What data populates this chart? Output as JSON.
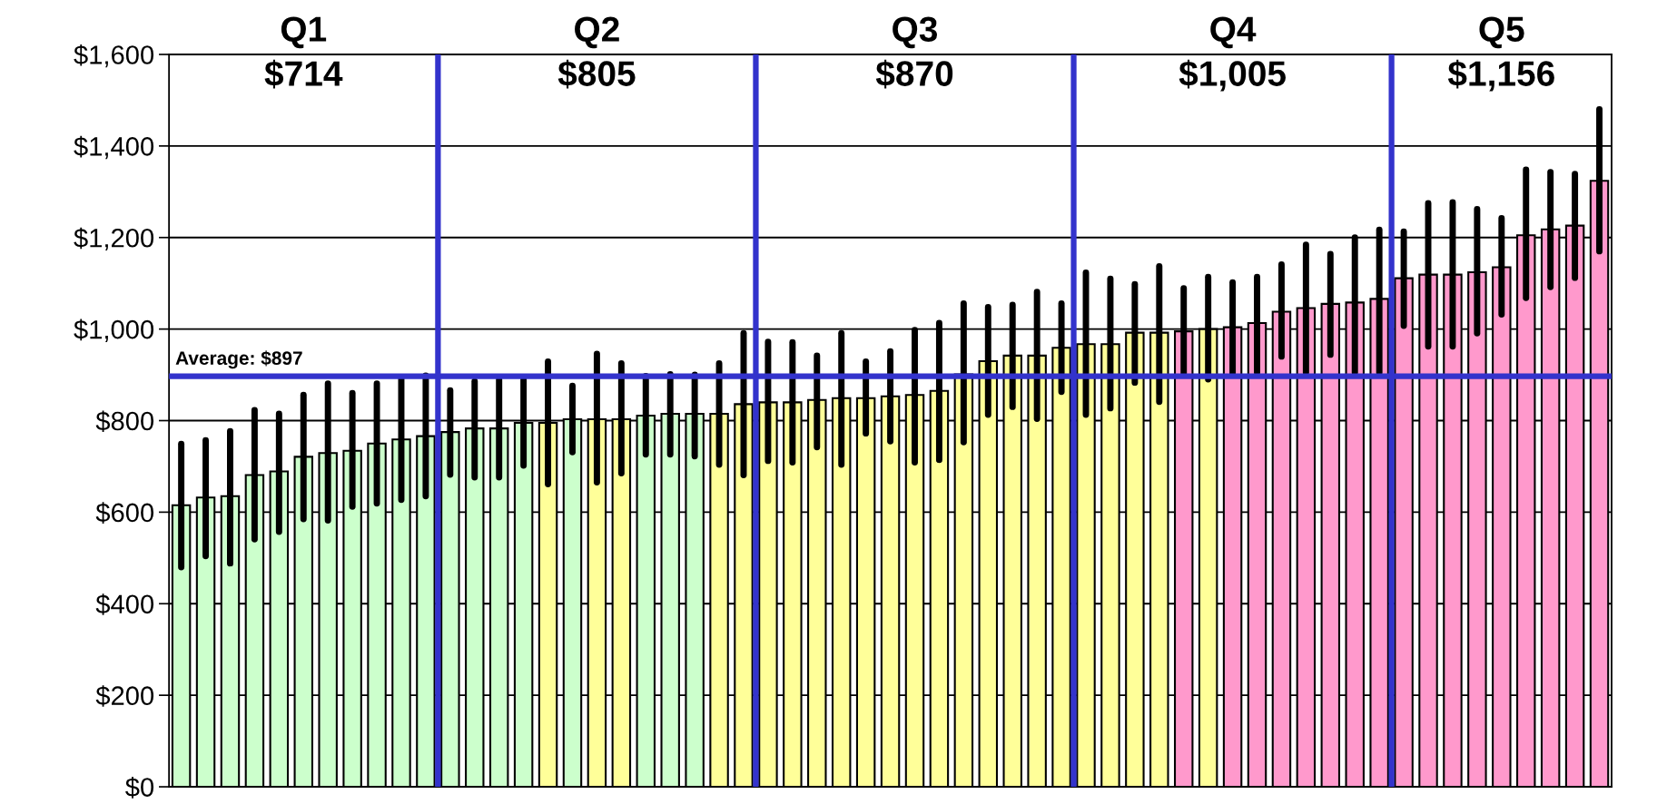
{
  "chart_data": {
    "type": "bar",
    "categories": [
      null,
      null,
      null,
      null,
      null,
      null,
      null,
      null,
      null,
      null,
      null,
      null,
      null,
      null,
      null,
      null,
      null,
      null,
      null,
      null,
      null,
      null,
      null,
      null,
      null,
      null,
      null,
      null,
      null,
      null,
      null,
      null,
      null,
      null,
      null,
      null,
      null,
      null,
      null,
      null,
      null,
      null,
      null,
      null,
      null,
      null,
      null,
      null,
      null,
      null,
      null,
      null,
      null,
      null,
      null,
      null,
      null,
      null,
      null
    ],
    "values": [
      615,
      632,
      635,
      681,
      689,
      721,
      729,
      734,
      750,
      759,
      766,
      775,
      783,
      783,
      795,
      795,
      803,
      803,
      803,
      811,
      815,
      815,
      815,
      836,
      840,
      840,
      845,
      849,
      849,
      853,
      856,
      865,
      901,
      930,
      942,
      942,
      959,
      967,
      967,
      992,
      992,
      995,
      1000,
      1004,
      1013,
      1038,
      1046,
      1055,
      1058,
      1066,
      1111,
      1119,
      1119,
      1124,
      1135,
      1205,
      1218,
      1226,
      1324
    ],
    "errors": [
      [
        480,
        749
      ],
      [
        504,
        757
      ],
      [
        488,
        777
      ],
      [
        541,
        823
      ],
      [
        557,
        815
      ],
      [
        585,
        856
      ],
      [
        582,
        881
      ],
      [
        612,
        860
      ],
      [
        619,
        881
      ],
      [
        627,
        894
      ],
      [
        635,
        898
      ],
      [
        682,
        866
      ],
      [
        676,
        886
      ],
      [
        676,
        890
      ],
      [
        702,
        890
      ],
      [
        661,
        929
      ],
      [
        731,
        876
      ],
      [
        665,
        946
      ],
      [
        685,
        925
      ],
      [
        726,
        897
      ],
      [
        726,
        901
      ],
      [
        722,
        900
      ],
      [
        704,
        925
      ],
      [
        681,
        991
      ],
      [
        712,
        972
      ],
      [
        709,
        971
      ],
      [
        742,
        942
      ],
      [
        704,
        991
      ],
      [
        772,
        929
      ],
      [
        755,
        951
      ],
      [
        709,
        998
      ],
      [
        714,
        1013
      ],
      [
        753,
        1056
      ],
      [
        813,
        1048
      ],
      [
        830,
        1053
      ],
      [
        804,
        1081
      ],
      [
        863,
        1056
      ],
      [
        813,
        1123
      ],
      [
        827,
        1110
      ],
      [
        883,
        1098
      ],
      [
        841,
        1137
      ],
      [
        903,
        1089
      ],
      [
        890,
        1114
      ],
      [
        903,
        1102
      ],
      [
        905,
        1114
      ],
      [
        940,
        1141
      ],
      [
        905,
        1184
      ],
      [
        944,
        1164
      ],
      [
        905,
        1200
      ],
      [
        905,
        1217
      ],
      [
        1007,
        1213
      ],
      [
        962,
        1275
      ],
      [
        962,
        1277
      ],
      [
        991,
        1262
      ],
      [
        1032,
        1242
      ],
      [
        1068,
        1348
      ],
      [
        1092,
        1343
      ],
      [
        1112,
        1339
      ],
      [
        1170,
        1480
      ]
    ],
    "colors": [
      "#ccffcc",
      "#ccffcc",
      "#ccffcc",
      "#ccffcc",
      "#ccffcc",
      "#ccffcc",
      "#ccffcc",
      "#ccffcc",
      "#ccffcc",
      "#ccffcc",
      "#ccffcc",
      "#ccffcc",
      "#ccffcc",
      "#ccffcc",
      "#ccffcc",
      "#ffff99",
      "#ccffcc",
      "#ffff99",
      "#ffff99",
      "#ccffcc",
      "#ccffcc",
      "#ccffcc",
      "#ffff99",
      "#ffff99",
      "#ffff99",
      "#ffff99",
      "#ffff99",
      "#ffff99",
      "#ffff99",
      "#ffff99",
      "#ffff99",
      "#ffff99",
      "#ffff99",
      "#ffff99",
      "#ffff99",
      "#ffff99",
      "#ffff99",
      "#ffff99",
      "#ffff99",
      "#ffff99",
      "#ffff99",
      "#ff99cc",
      "#ffff99",
      "#ff99cc",
      "#ff99cc",
      "#ff99cc",
      "#ff99cc",
      "#ff99cc",
      "#ff99cc",
      "#ff99cc",
      "#ff99cc",
      "#ff99cc",
      "#ff99cc",
      "#ff99cc",
      "#ff99cc",
      "#ff99cc",
      "#ff99cc",
      "#ff99cc",
      "#ff99cc"
    ],
    "ylim": [
      0,
      1600
    ],
    "yticks": [
      {
        "value": 0,
        "label": "$0"
      },
      {
        "value": 200,
        "label": "$200"
      },
      {
        "value": 400,
        "label": "$400"
      },
      {
        "value": 600,
        "label": "$600"
      },
      {
        "value": 800,
        "label": "$800"
      },
      {
        "value": 1000,
        "label": "$1,000"
      },
      {
        "value": 1200,
        "label": "$1,200"
      },
      {
        "value": 1400,
        "label": "$1,400"
      },
      {
        "value": 1600,
        "label": "$1,600"
      }
    ],
    "tick_labels": "y",
    "grid": "y",
    "ref_lines": [
      {
        "axis": "y",
        "value": 897,
        "label": "Average: $897",
        "color": "#3333cc"
      }
    ],
    "annotations": [
      "Q1\n$714",
      "Q2\n$805",
      "Q3\n$870",
      "Q4\n$1,005",
      "Q5\n$1,156"
    ]
  }
}
